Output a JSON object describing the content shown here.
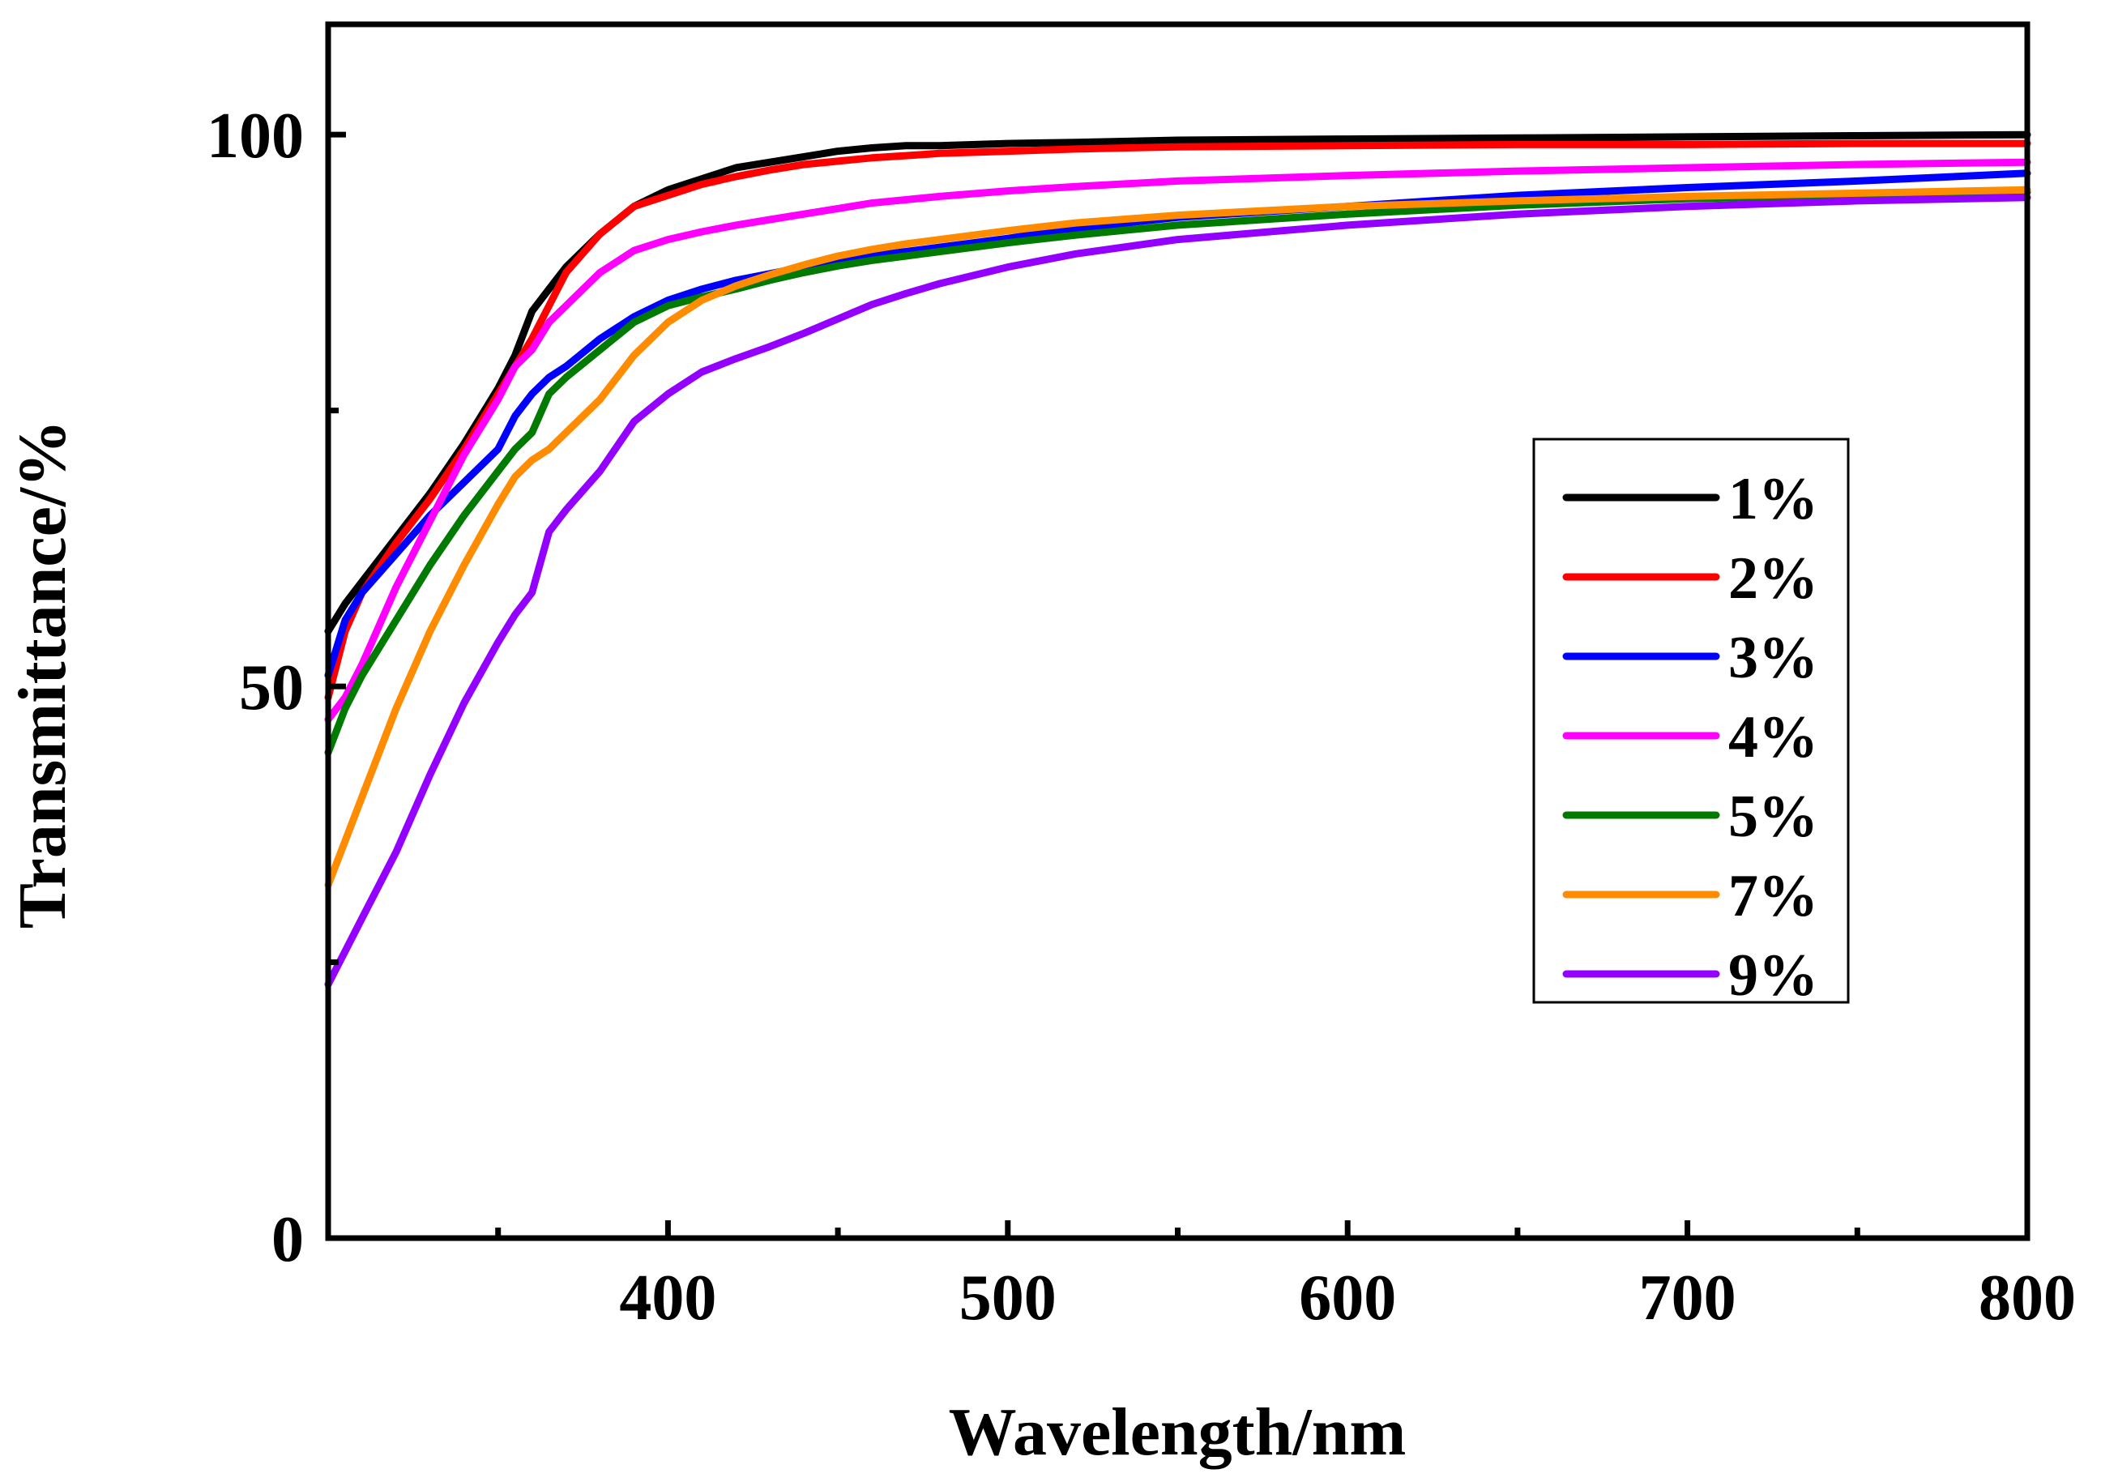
{
  "chart_data": {
    "type": "line",
    "title": "",
    "xlabel": "Wavelength/nm",
    "ylabel": "Transmittance/%",
    "xlim": [
      300,
      800
    ],
    "ylim": [
      0,
      110
    ],
    "xticks": [
      400,
      500,
      600,
      700,
      800
    ],
    "xminor": [
      350,
      450,
      550,
      650,
      750
    ],
    "yticks": [
      0,
      50,
      100
    ],
    "yminor": [
      25,
      75
    ],
    "grid": false,
    "legend_position": "right-middle",
    "series": [
      {
        "name": "1%",
        "color": "#000000",
        "x": [
          300,
          305,
          310,
          320,
          330,
          340,
          350,
          355,
          360,
          365,
          370,
          380,
          390,
          400,
          410,
          420,
          430,
          440,
          450,
          460,
          470,
          480,
          500,
          520,
          550,
          600,
          650,
          700,
          750,
          800
        ],
        "y": [
          55,
          57.5,
          59.5,
          63.5,
          67.5,
          72,
          77,
          80,
          84,
          86,
          88,
          91,
          93.5,
          95,
          96,
          97,
          97.5,
          98,
          98.5,
          98.8,
          99,
          99,
          99.2,
          99.3,
          99.5,
          99.6,
          99.7,
          99.8,
          99.9,
          100
        ]
      },
      {
        "name": "2%",
        "color": "#ff0000",
        "x": [
          300,
          305,
          310,
          320,
          330,
          340,
          350,
          355,
          360,
          365,
          370,
          380,
          390,
          400,
          410,
          420,
          430,
          440,
          450,
          460,
          470,
          480,
          500,
          520,
          550,
          600,
          650,
          700,
          750,
          800
        ],
        "y": [
          49,
          55,
          58.5,
          63,
          67,
          71.5,
          76.5,
          79,
          81.5,
          84.5,
          87.5,
          91,
          93.5,
          94.5,
          95.5,
          96.2,
          96.8,
          97.3,
          97.6,
          97.9,
          98.1,
          98.3,
          98.5,
          98.7,
          98.9,
          99,
          99.1,
          99.1,
          99.2,
          99.2
        ]
      },
      {
        "name": "3%",
        "color": "#0000ff",
        "x": [
          300,
          305,
          310,
          320,
          330,
          340,
          350,
          355,
          360,
          365,
          370,
          380,
          390,
          400,
          410,
          420,
          430,
          440,
          450,
          460,
          470,
          480,
          500,
          520,
          550,
          600,
          650,
          700,
          750,
          800
        ],
        "y": [
          51,
          56,
          58.5,
          62,
          65.5,
          68.5,
          71.5,
          74.5,
          76.5,
          78,
          79,
          81.5,
          83.5,
          85,
          86,
          86.8,
          87.4,
          88,
          88.5,
          89,
          89.4,
          89.8,
          90.6,
          91.5,
          92.5,
          93.5,
          94.5,
          95.2,
          95.8,
          96.5
        ]
      },
      {
        "name": "4%",
        "color": "#ff00ff",
        "x": [
          300,
          305,
          310,
          320,
          330,
          340,
          350,
          355,
          360,
          365,
          370,
          380,
          390,
          400,
          410,
          420,
          430,
          440,
          450,
          460,
          470,
          480,
          500,
          520,
          550,
          600,
          650,
          700,
          750,
          800
        ],
        "y": [
          47,
          49,
          52,
          59,
          65,
          71,
          76,
          79,
          80.5,
          83,
          84.5,
          87.5,
          89.5,
          90.5,
          91.2,
          91.8,
          92.3,
          92.8,
          93.3,
          93.8,
          94.1,
          94.4,
          94.9,
          95.3,
          95.8,
          96.3,
          96.7,
          97,
          97.3,
          97.5
        ]
      },
      {
        "name": "5%",
        "color": "#007a00",
        "x": [
          300,
          305,
          310,
          320,
          330,
          340,
          350,
          355,
          360,
          365,
          370,
          380,
          390,
          400,
          410,
          420,
          430,
          440,
          450,
          460,
          470,
          480,
          500,
          520,
          550,
          600,
          650,
          700,
          750,
          800
        ],
        "y": [
          44,
          48,
          51,
          56,
          61,
          65.5,
          69.5,
          71.5,
          73,
          76.5,
          78,
          80.5,
          83,
          84.5,
          85.3,
          86,
          86.8,
          87.5,
          88.1,
          88.6,
          89,
          89.4,
          90.2,
          90.9,
          91.8,
          92.8,
          93.6,
          94.2,
          94.5,
          94.8
        ]
      },
      {
        "name": "7%",
        "color": "#ff8c00",
        "x": [
          300,
          305,
          310,
          320,
          330,
          340,
          350,
          355,
          360,
          365,
          370,
          380,
          390,
          400,
          410,
          420,
          430,
          440,
          450,
          460,
          470,
          480,
          500,
          520,
          550,
          600,
          650,
          700,
          750,
          800
        ],
        "y": [
          32,
          36,
          40,
          48,
          55,
          61,
          66.5,
          69,
          70.5,
          71.5,
          73,
          76,
          80,
          83,
          85,
          86.3,
          87.3,
          88.2,
          89,
          89.6,
          90.1,
          90.5,
          91.3,
          92,
          92.7,
          93.5,
          94,
          94.4,
          94.7,
          95
        ]
      },
      {
        "name": "9%",
        "color": "#9400ff",
        "x": [
          300,
          305,
          310,
          320,
          330,
          340,
          350,
          355,
          360,
          365,
          370,
          380,
          390,
          400,
          410,
          420,
          430,
          440,
          450,
          460,
          470,
          480,
          500,
          520,
          550,
          600,
          650,
          700,
          750,
          800
        ],
        "y": [
          23,
          26,
          29,
          35,
          42,
          48.5,
          54,
          56.5,
          58.5,
          64,
          66,
          69.5,
          74,
          76.5,
          78.5,
          79.7,
          80.8,
          82,
          83.3,
          84.6,
          85.6,
          86.5,
          88,
          89.2,
          90.5,
          91.8,
          92.8,
          93.5,
          94,
          94.3
        ]
      }
    ]
  }
}
